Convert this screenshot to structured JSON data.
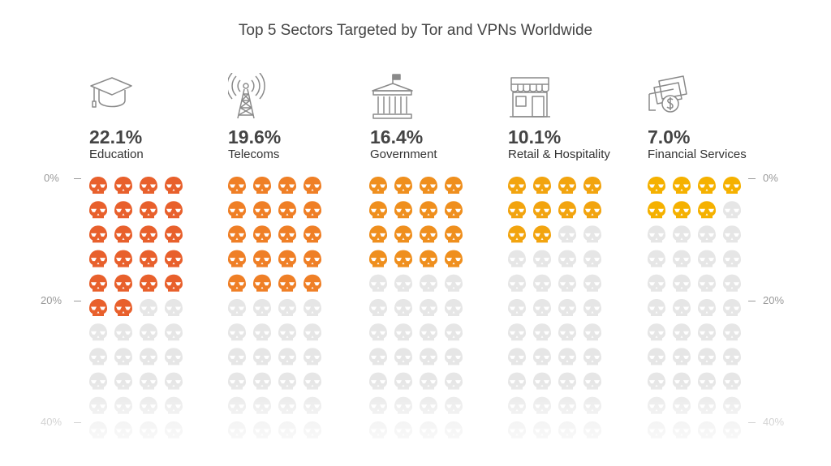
{
  "chart_data": {
    "type": "waffle",
    "title": "Top 5 Sectors Targeted by Tor and VPNs Worldwide",
    "unit": "%",
    "cell_value": 1,
    "axis": {
      "ticks": [
        "0%",
        "20%",
        "40%"
      ],
      "tick_values": [
        0,
        20,
        40
      ]
    },
    "categories": [
      "Education",
      "Telecoms",
      "Government",
      "Retail & Hospitality",
      "Financial Services"
    ],
    "values": [
      22.1,
      19.6,
      16.4,
      10.1,
      7.0
    ],
    "value_labels": [
      "22.1%",
      "19.6%",
      "16.4%",
      "10.1%",
      "7.0%"
    ],
    "icons": [
      "graduation-cap-icon",
      "radio-tower-icon",
      "government-building-icon",
      "storefront-icon",
      "money-payment-icon"
    ],
    "colors": [
      "#e8602c",
      "#ef7f26",
      "#ef8f1e",
      "#f2a40f",
      "#f5b100"
    ],
    "empty_color": "#e6e6e6"
  }
}
